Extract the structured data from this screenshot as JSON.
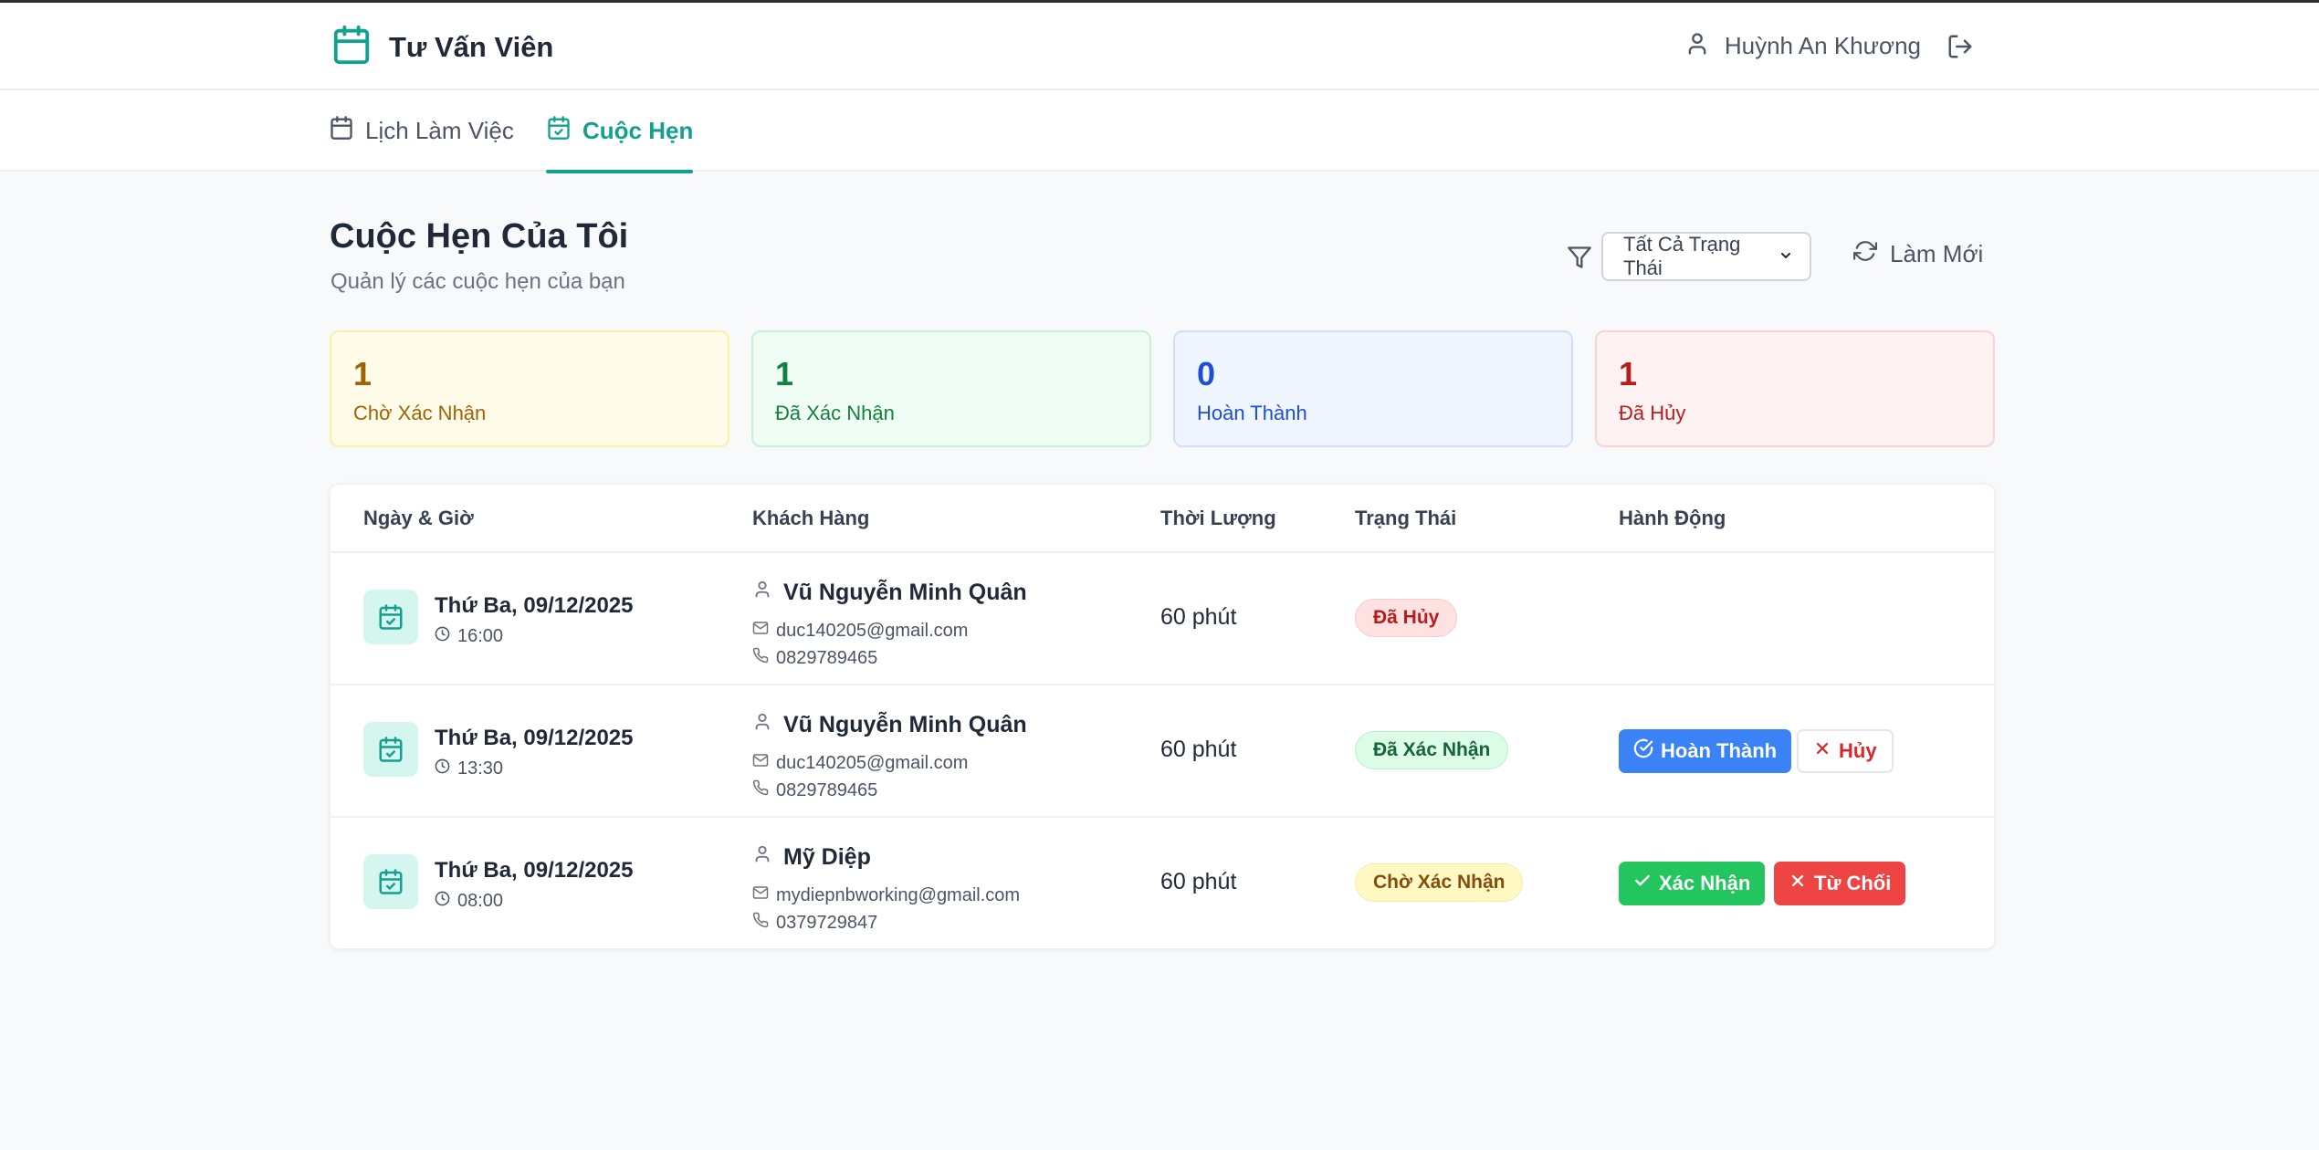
{
  "header": {
    "title": "Tư Vấn Viên",
    "user_name": "Huỳnh An Khương"
  },
  "tabs": [
    {
      "label": "Lịch Làm Việc"
    },
    {
      "label": "Cuộc Hẹn",
      "active": true
    }
  ],
  "page": {
    "title": "Cuộc Hẹn Của Tôi",
    "subtitle": "Quản lý các cuộc hẹn của bạn"
  },
  "filter": {
    "selected": "Tất Cả Trạng Thái"
  },
  "refresh_label": "Làm Mới",
  "stats": [
    {
      "value": "1",
      "label": "Chờ Xác Nhận"
    },
    {
      "value": "1",
      "label": "Đã Xác Nhận"
    },
    {
      "value": "0",
      "label": "Hoàn Thành"
    },
    {
      "value": "1",
      "label": "Đã Hủy"
    }
  ],
  "table": {
    "headers": [
      "Ngày & Giờ",
      "Khách Hàng",
      "Thời Lượng",
      "Trạng Thái",
      "Hành Động"
    ],
    "rows": [
      {
        "date": "Thứ Ba, 09/12/2025",
        "time": "16:00",
        "name": "Vũ Nguyễn Minh Quân",
        "email": "duc140205@gmail.com",
        "phone": "0829789465",
        "duration": "60 phút",
        "status": "Đã Hủy"
      },
      {
        "date": "Thứ Ba, 09/12/2025",
        "time": "13:30",
        "name": "Vũ Nguyễn Minh Quân",
        "email": "duc140205@gmail.com",
        "phone": "0829789465",
        "duration": "60 phút",
        "status": "Đã Xác Nhận",
        "actions": [
          "Hoàn Thành",
          "Hủy"
        ]
      },
      {
        "date": "Thứ Ba, 09/12/2025",
        "time": "08:00",
        "name": "Mỹ Diệp",
        "email": "mydiepnbworking@gmail.com",
        "phone": "0379729847",
        "duration": "60 phút",
        "status": "Chờ Xác Nhận",
        "actions": [
          "Xác Nhận",
          "Từ Chối"
        ]
      }
    ]
  },
  "colors": {
    "accent": "#13a08f",
    "blue": "#3b82f6",
    "green": "#22c55e",
    "red": "#ef4444"
  },
  "icons": [
    "calendar-icon",
    "user-icon",
    "logout-icon",
    "calendar-check-icon",
    "filter-icon",
    "refresh-icon",
    "clock-icon",
    "mail-icon",
    "phone-icon",
    "check-circle-icon",
    "x-icon",
    "check-icon"
  ]
}
